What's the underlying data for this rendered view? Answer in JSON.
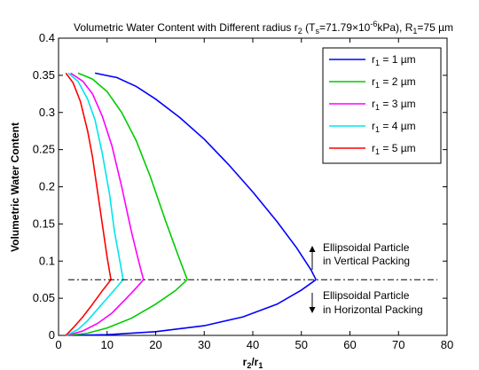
{
  "chart_data": {
    "type": "line",
    "title": {
      "main": "Volumetric Water Content with Different radius r",
      "main_sub": "2",
      "ts_open": " (T",
      "ts_sub": "s",
      "ts_value": "=71.79×10",
      "ts_sup": "-6",
      "ts_unit": "kPa), R",
      "r_sub": "1",
      "r_value": "=75 µm"
    },
    "xlabel": {
      "main": "r",
      "sub1": "2",
      "slash": "/r",
      "sub2": "1"
    },
    "ylabel": "Volumetric Water Content",
    "xlim": [
      0,
      80
    ],
    "ylim": [
      0,
      0.4
    ],
    "xticks": [
      "0",
      "10",
      "20",
      "30",
      "40",
      "50",
      "60",
      "70",
      "80"
    ],
    "yticks": [
      "0",
      "0.05",
      "0.1",
      "0.15",
      "0.2",
      "0.25",
      "0.3",
      "0.35",
      "0.4"
    ],
    "grid": false,
    "legend_position": "top-right",
    "series": [
      {
        "name": "r",
        "name_sub": "1",
        "name_value": " = 1 µm",
        "color": "#0000ff",
        "upper": [
          [
            7.5,
            0.353
          ],
          [
            12,
            0.347
          ],
          [
            16,
            0.335
          ],
          [
            20,
            0.318
          ],
          [
            25,
            0.293
          ],
          [
            30,
            0.264
          ],
          [
            35,
            0.23
          ],
          [
            40,
            0.193
          ],
          [
            45,
            0.153
          ],
          [
            49,
            0.118
          ],
          [
            52,
            0.088
          ],
          [
            53,
            0.075
          ]
        ],
        "lower": [
          [
            2,
            0
          ],
          [
            10,
            0.001
          ],
          [
            20,
            0.005
          ],
          [
            30,
            0.013
          ],
          [
            38,
            0.025
          ],
          [
            45,
            0.042
          ],
          [
            50,
            0.061
          ],
          [
            53,
            0.075
          ]
        ]
      },
      {
        "name": "r",
        "name_sub": "1",
        "name_value": " = 2 µm",
        "color": "#00cc00",
        "upper": [
          [
            4,
            0.353
          ],
          [
            7,
            0.345
          ],
          [
            10,
            0.328
          ],
          [
            13,
            0.3
          ],
          [
            16,
            0.262
          ],
          [
            19,
            0.212
          ],
          [
            22,
            0.155
          ],
          [
            24.5,
            0.11
          ],
          [
            26.5,
            0.075
          ]
        ],
        "lower": [
          [
            2,
            0
          ],
          [
            6,
            0.003
          ],
          [
            10,
            0.01
          ],
          [
            15,
            0.023
          ],
          [
            20,
            0.042
          ],
          [
            24,
            0.06
          ],
          [
            26.5,
            0.075
          ]
        ]
      },
      {
        "name": "r",
        "name_sub": "1",
        "name_value": " = 3 µm",
        "color": "#ff00ff",
        "upper": [
          [
            2.5,
            0.353
          ],
          [
            5,
            0.342
          ],
          [
            7,
            0.325
          ],
          [
            9,
            0.295
          ],
          [
            11,
            0.255
          ],
          [
            13,
            0.2
          ],
          [
            15,
            0.14
          ],
          [
            16.5,
            0.1
          ],
          [
            17.5,
            0.075
          ]
        ],
        "lower": [
          [
            1.8,
            0
          ],
          [
            5,
            0.006
          ],
          [
            8,
            0.016
          ],
          [
            11,
            0.03
          ],
          [
            14,
            0.05
          ],
          [
            16,
            0.064
          ],
          [
            17.5,
            0.075
          ]
        ]
      },
      {
        "name": "r",
        "name_sub": "1",
        "name_value": " = 4 µm",
        "color": "#00e5ee",
        "upper": [
          [
            2,
            0.353
          ],
          [
            4,
            0.342
          ],
          [
            6,
            0.318
          ],
          [
            7.5,
            0.29
          ],
          [
            9,
            0.245
          ],
          [
            10.5,
            0.19
          ],
          [
            11.5,
            0.14
          ],
          [
            12.5,
            0.105
          ],
          [
            13.3,
            0.075
          ]
        ],
        "lower": [
          [
            1.6,
            0
          ],
          [
            4,
            0.008
          ],
          [
            6,
            0.02
          ],
          [
            8,
            0.035
          ],
          [
            10,
            0.05
          ],
          [
            12,
            0.065
          ],
          [
            13.3,
            0.075
          ]
        ]
      },
      {
        "name": "r",
        "name_sub": "1",
        "name_value": " = 5 µm",
        "color": "#ff0000",
        "upper": [
          [
            1.5,
            0.353
          ],
          [
            3,
            0.34
          ],
          [
            4.5,
            0.315
          ],
          [
            6,
            0.275
          ],
          [
            7,
            0.24
          ],
          [
            8,
            0.195
          ],
          [
            9,
            0.15
          ],
          [
            10,
            0.105
          ],
          [
            10.8,
            0.075
          ]
        ],
        "lower": [
          [
            1.5,
            0
          ],
          [
            3,
            0.01
          ],
          [
            5,
            0.025
          ],
          [
            7,
            0.042
          ],
          [
            9,
            0.06
          ],
          [
            10.8,
            0.075
          ]
        ]
      }
    ],
    "reference_line": {
      "y": 0.075,
      "x_range": [
        2,
        78
      ],
      "style": "dash-dot",
      "color": "#000000"
    },
    "annotations": {
      "upper_line1": "Ellipsoidal Particle",
      "upper_line2": "in Vertical Packing",
      "lower_line1": "Ellipsoidal Particle",
      "lower_line2": "in Horizontal Packing"
    }
  }
}
